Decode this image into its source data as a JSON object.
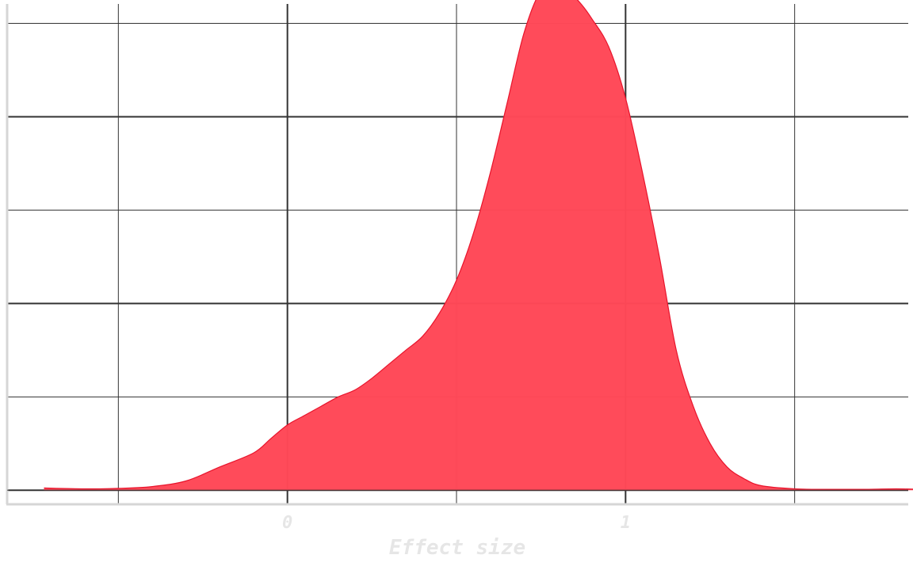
{
  "chart_data": {
    "type": "area",
    "title": "",
    "xlabel": "Effect size",
    "ylabel": "",
    "xlim": [
      -0.85,
      1.85
    ],
    "ylim": [
      -0.03,
      1.05
    ],
    "x_ticks": [
      {
        "value": 0,
        "label": "0"
      },
      {
        "value": 1,
        "label": "1"
      }
    ],
    "x_minor_ticks": [
      -0.5,
      0.5,
      1.5
    ],
    "y_major_ticks": [
      0,
      0.4,
      0.8
    ],
    "y_minor_ticks": [
      0.2,
      0.6,
      1.0
    ],
    "grid": true,
    "series": [
      {
        "fill": "#ff4757",
        "stroke": "#e8142c",
        "x": [
          -0.72,
          -0.6,
          -0.5,
          -0.4,
          -0.3,
          -0.2,
          -0.1,
          -0.05,
          0.0,
          0.05,
          0.1,
          0.15,
          0.2,
          0.25,
          0.3,
          0.35,
          0.4,
          0.45,
          0.5,
          0.55,
          0.6,
          0.65,
          0.7,
          0.75,
          0.8,
          0.83,
          0.87,
          0.9,
          0.95,
          1.0,
          1.05,
          1.1,
          1.15,
          1.2,
          1.25,
          1.3,
          1.35,
          1.4,
          1.5,
          1.6,
          1.7,
          1.8,
          1.87
        ],
        "y": [
          0.005,
          0.003,
          0.004,
          0.008,
          0.02,
          0.05,
          0.08,
          0.11,
          0.14,
          0.16,
          0.18,
          0.2,
          0.215,
          0.24,
          0.27,
          0.3,
          0.33,
          0.38,
          0.45,
          0.55,
          0.68,
          0.83,
          0.98,
          1.07,
          1.08,
          1.07,
          1.04,
          1.01,
          0.95,
          0.84,
          0.68,
          0.5,
          0.3,
          0.18,
          0.1,
          0.05,
          0.025,
          0.01,
          0.003,
          0.002,
          0.002,
          0.003,
          0.002
        ]
      }
    ]
  }
}
